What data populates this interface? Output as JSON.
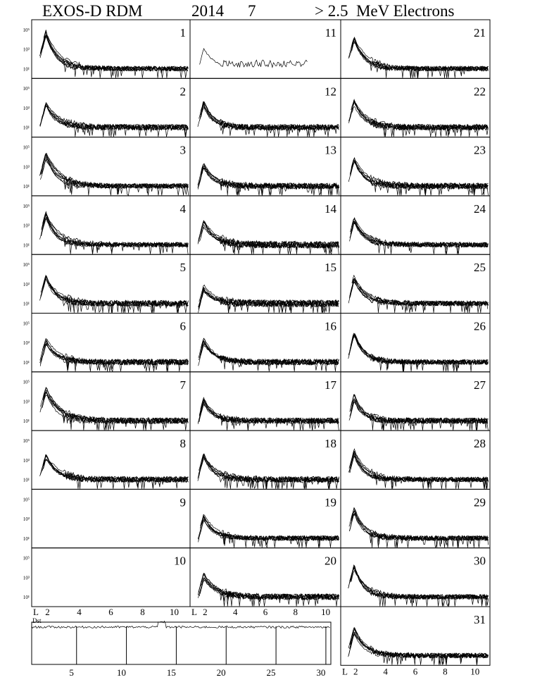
{
  "header": {
    "title": "EXOS-D RDM",
    "year": "2014",
    "month": "7",
    "species": "> 2.5  MeV Electrons"
  },
  "chart_data": {
    "type": "line",
    "panels": [
      {
        "day": "1",
        "has_data": true,
        "peak": 5.0,
        "noise": 0.5,
        "curves": 8
      },
      {
        "day": "2",
        "has_data": true,
        "peak": 4.0,
        "noise": 0.6,
        "curves": 8
      },
      {
        "day": "3",
        "has_data": true,
        "peak": 4.5,
        "noise": 0.5,
        "curves": 8
      },
      {
        "day": "4",
        "has_data": true,
        "peak": 4.5,
        "noise": 0.5,
        "curves": 8
      },
      {
        "day": "5",
        "has_data": true,
        "peak": 4.0,
        "noise": 0.6,
        "curves": 8
      },
      {
        "day": "6",
        "has_data": true,
        "peak": 3.5,
        "noise": 0.6,
        "curves": 8
      },
      {
        "day": "7",
        "has_data": true,
        "peak": 4.5,
        "noise": 0.6,
        "curves": 8
      },
      {
        "day": "8",
        "has_data": true,
        "peak": 3.8,
        "noise": 0.6,
        "curves": 8
      },
      {
        "day": "9",
        "has_data": false,
        "peak": 0,
        "noise": 0,
        "curves": 0
      },
      {
        "day": "10",
        "has_data": false,
        "peak": 0,
        "noise": 0,
        "curves": 0
      },
      {
        "day": "11",
        "has_data": true,
        "peak": 3.5,
        "noise": 0.5,
        "curves": 1
      },
      {
        "day": "12",
        "has_data": true,
        "peak": 3.8,
        "noise": 0.6,
        "curves": 8
      },
      {
        "day": "13",
        "has_data": true,
        "peak": 3.5,
        "noise": 0.6,
        "curves": 8
      },
      {
        "day": "14",
        "has_data": true,
        "peak": 3.5,
        "noise": 0.7,
        "curves": 8
      },
      {
        "day": "15",
        "has_data": true,
        "peak": 3.0,
        "noise": 0.7,
        "curves": 8
      },
      {
        "day": "16",
        "has_data": true,
        "peak": 3.5,
        "noise": 0.6,
        "curves": 8
      },
      {
        "day": "17",
        "has_data": true,
        "peak": 3.5,
        "noise": 0.6,
        "curves": 8
      },
      {
        "day": "18",
        "has_data": true,
        "peak": 3.8,
        "noise": 0.6,
        "curves": 8
      },
      {
        "day": "19",
        "has_data": true,
        "peak": 3.5,
        "noise": 0.5,
        "curves": 8
      },
      {
        "day": "20",
        "has_data": true,
        "peak": 3.5,
        "noise": 0.6,
        "curves": 8
      },
      {
        "day": "21",
        "has_data": true,
        "peak": 4.5,
        "noise": 0.5,
        "curves": 8
      },
      {
        "day": "22",
        "has_data": true,
        "peak": 4.0,
        "noise": 0.6,
        "curves": 8
      },
      {
        "day": "23",
        "has_data": true,
        "peak": 4.0,
        "noise": 0.6,
        "curves": 8
      },
      {
        "day": "24",
        "has_data": true,
        "peak": 4.0,
        "noise": 0.5,
        "curves": 8
      },
      {
        "day": "25",
        "has_data": true,
        "peak": 4.0,
        "noise": 0.5,
        "curves": 8
      },
      {
        "day": "26",
        "has_data": true,
        "peak": 4.2,
        "noise": 0.5,
        "curves": 8
      },
      {
        "day": "27",
        "has_data": true,
        "peak": 3.8,
        "noise": 0.6,
        "curves": 8
      },
      {
        "day": "28",
        "has_data": true,
        "peak": 4.2,
        "noise": 0.5,
        "curves": 8
      },
      {
        "day": "29",
        "has_data": true,
        "peak": 4.2,
        "noise": 0.5,
        "curves": 8
      },
      {
        "day": "30",
        "has_data": true,
        "peak": 4.5,
        "noise": 0.5,
        "curves": 8
      },
      {
        "day": "31",
        "has_data": true,
        "peak": 4.0,
        "noise": 0.5,
        "curves": 8
      }
    ],
    "y_axis": {
      "tick_labels": [
        "10⁵",
        "10³",
        "10¹"
      ],
      "log_values": [
        5,
        3,
        1
      ],
      "ylim": [
        0,
        6
      ]
    },
    "x_axis": {
      "label": "L",
      "tick_labels": [
        "2",
        "4",
        "6",
        "8",
        "10"
      ],
      "values": [
        2,
        4,
        6,
        8,
        10
      ],
      "xlim": [
        1,
        11
      ]
    },
    "dst": {
      "label": "Dst",
      "day_tick_labels": [
        "5",
        "10",
        "15",
        "20",
        "25",
        "30"
      ],
      "day_values": [
        5,
        10,
        15,
        20,
        25,
        30
      ],
      "xlim": [
        1,
        31
      ],
      "event_day": 14
    }
  }
}
